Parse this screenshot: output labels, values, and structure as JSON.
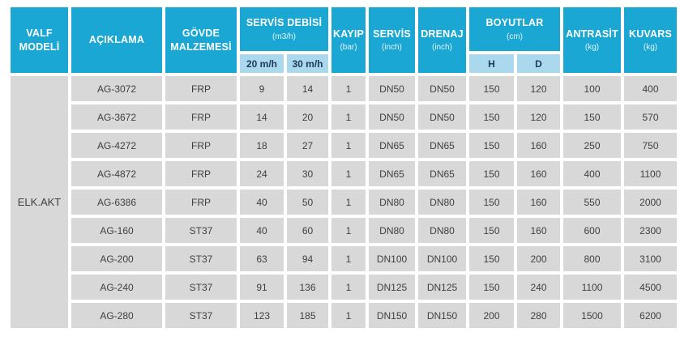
{
  "colors": {
    "header_bg": "#1AA7D4",
    "subheader_bg": "#AAD8EC",
    "row_bg": "#D8D8D8",
    "header_text": "#FFFFFF",
    "subheader_text": "#1D3A57",
    "cell_text": "#404040"
  },
  "table": {
    "group_label": "ELK.AKT",
    "header": {
      "valf_modeli": "VALF MODELİ",
      "aciklama": "AÇIKLAMA",
      "govde_malzemesi": "GÖVDE MALZEMESİ",
      "servis_debisi": {
        "title": "SERVİS DEBİSİ",
        "unit": "(m3/h)",
        "sub": [
          "20 m/h",
          "30 m/h"
        ]
      },
      "kayip": {
        "title": "KAYIP",
        "unit": "(bar)"
      },
      "servis": {
        "title": "SERVİS",
        "unit": "(inch)"
      },
      "drenaj": {
        "title": "DRENAJ",
        "unit": "(inch)"
      },
      "boyutlar": {
        "title": "BOYUTLAR",
        "unit": "(cm)",
        "sub": [
          "H",
          "D"
        ]
      },
      "antrasit": {
        "title": "ANTRASİT",
        "unit": "(kg)"
      },
      "kuvars": {
        "title": "KUVARS",
        "unit": "(kg)"
      }
    },
    "row_keys": [
      "aciklama",
      "govde",
      "debi_20",
      "debi_30",
      "kayip",
      "servis",
      "drenaj",
      "boyut_h",
      "boyut_d",
      "antrasit",
      "kuvars"
    ],
    "rows": [
      {
        "aciklama": "AG-3072",
        "govde": "FRP",
        "debi_20": "9",
        "debi_30": "14",
        "kayip": "1",
        "servis": "DN50",
        "drenaj": "DN50",
        "boyut_h": "150",
        "boyut_d": "120",
        "antrasit": "100",
        "kuvars": "400"
      },
      {
        "aciklama": "AG-3672",
        "govde": "FRP",
        "debi_20": "14",
        "debi_30": "20",
        "kayip": "1",
        "servis": "DN50",
        "drenaj": "DN50",
        "boyut_h": "150",
        "boyut_d": "120",
        "antrasit": "150",
        "kuvars": "570"
      },
      {
        "aciklama": "AG-4272",
        "govde": "FRP",
        "debi_20": "18",
        "debi_30": "27",
        "kayip": "1",
        "servis": "DN65",
        "drenaj": "DN65",
        "boyut_h": "150",
        "boyut_d": "160",
        "antrasit": "250",
        "kuvars": "750"
      },
      {
        "aciklama": "AG-4872",
        "govde": "FRP",
        "debi_20": "24",
        "debi_30": "30",
        "kayip": "1",
        "servis": "DN65",
        "drenaj": "DN65",
        "boyut_h": "150",
        "boyut_d": "160",
        "antrasit": "400",
        "kuvars": "1100"
      },
      {
        "aciklama": "AG-6386",
        "govde": "FRP",
        "debi_20": "40",
        "debi_30": "50",
        "kayip": "1",
        "servis": "DN80",
        "drenaj": "DN80",
        "boyut_h": "150",
        "boyut_d": "160",
        "antrasit": "550",
        "kuvars": "2000"
      },
      {
        "aciklama": "AG-160",
        "govde": "ST37",
        "debi_20": "40",
        "debi_30": "60",
        "kayip": "1",
        "servis": "DN80",
        "drenaj": "DN80",
        "boyut_h": "150",
        "boyut_d": "160",
        "antrasit": "600",
        "kuvars": "2300"
      },
      {
        "aciklama": "AG-200",
        "govde": "ST37",
        "debi_20": "63",
        "debi_30": "94",
        "kayip": "1",
        "servis": "DN100",
        "drenaj": "DN100",
        "boyut_h": "150",
        "boyut_d": "200",
        "antrasit": "800",
        "kuvars": "3100"
      },
      {
        "aciklama": "AG-240",
        "govde": "ST37",
        "debi_20": "91",
        "debi_30": "136",
        "kayip": "1",
        "servis": "DN125",
        "drenaj": "DN125",
        "boyut_h": "150",
        "boyut_d": "240",
        "antrasit": "1100",
        "kuvars": "4500"
      },
      {
        "aciklama": "AG-280",
        "govde": "ST37",
        "debi_20": "123",
        "debi_30": "185",
        "kayip": "1",
        "servis": "DN150",
        "drenaj": "DN150",
        "boyut_h": "200",
        "boyut_d": "280",
        "antrasit": "1500",
        "kuvars": "6200"
      }
    ]
  }
}
